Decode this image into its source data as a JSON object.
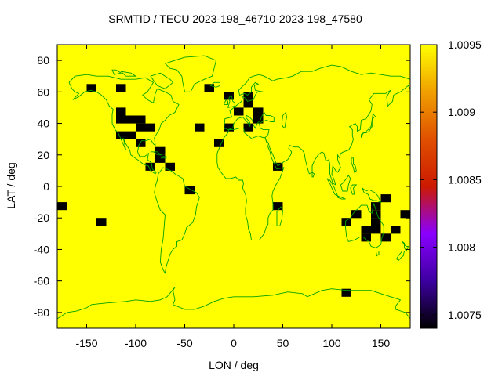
{
  "chart_data": {
    "type": "heatmap",
    "title": "SRMTID / TECU 2023-198_46710-2023-198_47580",
    "xlabel": "LON / deg",
    "ylabel": "LAT / deg",
    "xlim": [
      -180,
      180
    ],
    "ylim": [
      -90,
      90
    ],
    "xticks": [
      -150,
      -100,
      -50,
      0,
      50,
      100,
      150
    ],
    "yticks": [
      -80,
      -60,
      -40,
      -20,
      0,
      20,
      40,
      60,
      80
    ],
    "colorbar": {
      "range": [
        1.0074,
        1.0095
      ],
      "ticks": [
        1.0075,
        1.008,
        1.0085,
        1.009,
        1.0095
      ],
      "colors": [
        "#000000",
        "#3c00a0",
        "#8a00ff",
        "#cc1a00",
        "#e05000",
        "#f0a000",
        "#ffff00"
      ]
    },
    "background_value": 1.0095,
    "cell_size_deg": [
      10,
      5
    ],
    "cells_note": "cells listed as [lon_center, lat_center, value]",
    "cells": [
      [
        -175,
        -12.5,
        1.0074
      ],
      [
        -145,
        62.5,
        1.0074
      ],
      [
        -115,
        62.5,
        1.0074
      ],
      [
        -135,
        -22.5,
        1.0074
      ],
      [
        -115,
        47.5,
        1.0074
      ],
      [
        -115,
        42.5,
        1.0074
      ],
      [
        -105,
        42.5,
        1.0074
      ],
      [
        -95,
        42.5,
        1.0074
      ],
      [
        -95,
        37.5,
        1.0074
      ],
      [
        -85,
        37.5,
        1.0074
      ],
      [
        -115,
        32.5,
        1.0074
      ],
      [
        -105,
        32.5,
        1.0074
      ],
      [
        -95,
        27.5,
        1.0074
      ],
      [
        -75,
        22.5,
        1.0074
      ],
      [
        -75,
        17.5,
        1.0074
      ],
      [
        -85,
        12.5,
        1.0074
      ],
      [
        -65,
        12.5,
        1.0074
      ],
      [
        -45,
        -2.5,
        1.0074
      ],
      [
        -35,
        37.5,
        1.0074
      ],
      [
        -25,
        62.5,
        1.0074
      ],
      [
        -15,
        27.5,
        1.0074
      ],
      [
        -5,
        57.5,
        1.0074
      ],
      [
        -5,
        37.5,
        1.0074
      ],
      [
        5,
        47.5,
        1.0074
      ],
      [
        15,
        57.5,
        1.0074
      ],
      [
        15,
        52.5,
        1.0074
      ],
      [
        15,
        37.5,
        1.0074
      ],
      [
        25,
        47.5,
        1.0074
      ],
      [
        25,
        42.5,
        1.0074
      ],
      [
        45,
        12.5,
        1.0074
      ],
      [
        45,
        -12.5,
        1.0074
      ],
      [
        115,
        -22.5,
        1.0074
      ],
      [
        125,
        -17.5,
        1.0074
      ],
      [
        145,
        -12.5,
        1.0074
      ],
      [
        145,
        -17.5,
        1.0074
      ],
      [
        145,
        -22.5,
        1.0074
      ],
      [
        155,
        -7.5,
        1.0074
      ],
      [
        175,
        -17.5,
        1.0074
      ],
      [
        135,
        -27.5,
        1.0074
      ],
      [
        145,
        -27.5,
        1.0074
      ],
      [
        165,
        -27.5,
        1.0074
      ],
      [
        135,
        -32.5,
        1.0074
      ],
      [
        155,
        -32.5,
        1.0074
      ],
      [
        115,
        -67.5,
        1.0074
      ]
    ],
    "grid": false,
    "legend": "colorbar-right"
  }
}
